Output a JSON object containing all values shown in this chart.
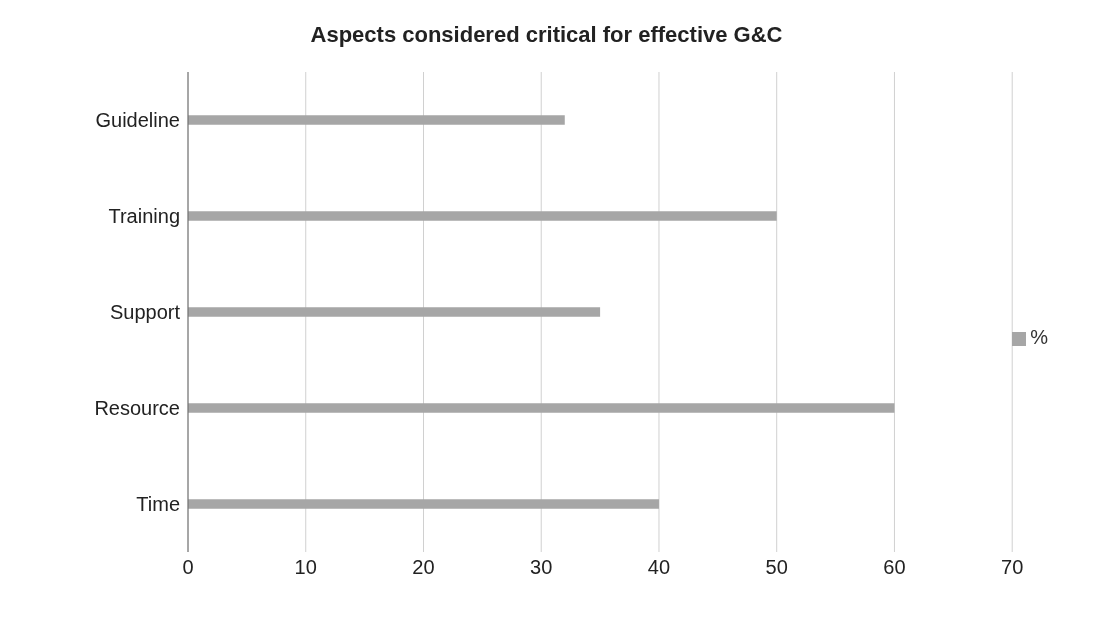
{
  "chart_data": {
    "type": "bar",
    "orientation": "horizontal",
    "title": "Aspects considered critical for effective G&C",
    "categories": [
      "Guideline",
      "Training",
      "Support",
      "Resource",
      "Time"
    ],
    "series": [
      {
        "name": "%",
        "color": "#a6a6a6",
        "values": [
          32,
          50,
          35,
          60,
          40
        ]
      }
    ],
    "xlim": [
      0,
      70
    ],
    "xticks": [
      0,
      10,
      20,
      30,
      40,
      50,
      60,
      70
    ],
    "grid": "x",
    "legend": "right"
  }
}
